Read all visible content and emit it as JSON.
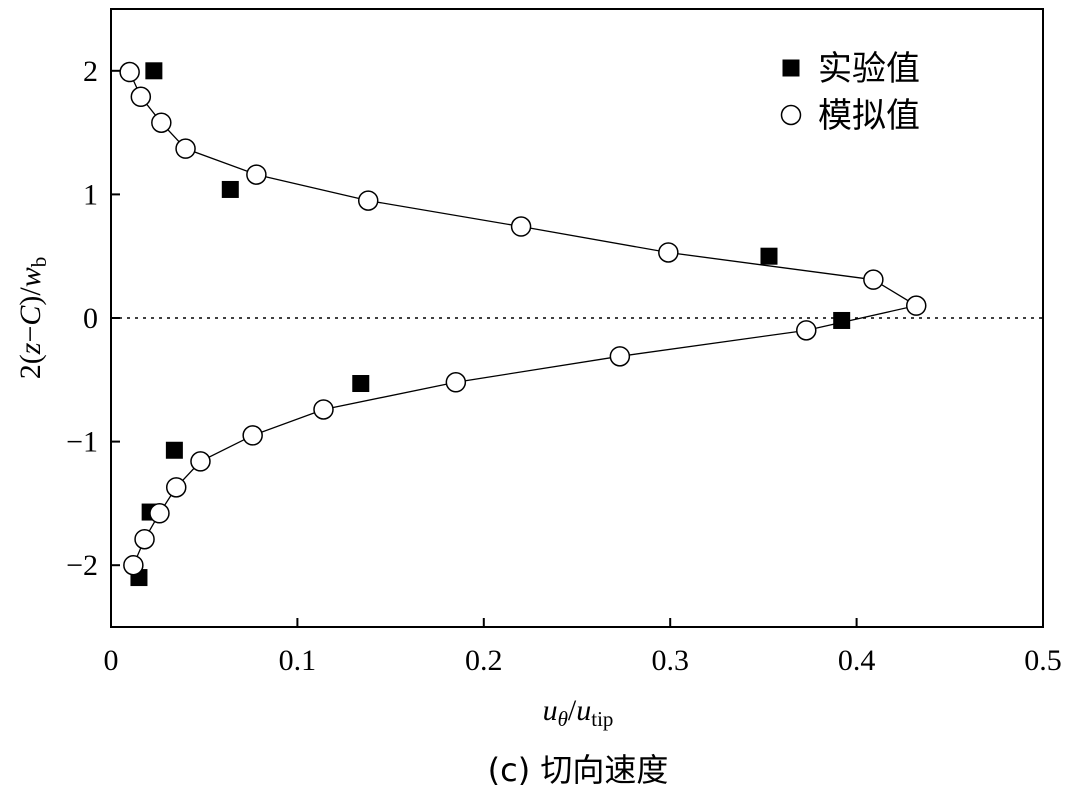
{
  "chart_data": {
    "type": "scatter",
    "title": "",
    "caption": "(c) 切向速度",
    "xlabel": {
      "main": "u",
      "main_sub": "θ",
      "sep": "/",
      "denom": "u",
      "denom_sub": "tip"
    },
    "ylabel": {
      "pre": "2(",
      "z": "z",
      "mid": "−",
      "c": "C",
      "post": ")/",
      "w": "w",
      "w_sub": "b"
    },
    "xlim": [
      0,
      0.5
    ],
    "ylim": [
      -2.5,
      2.5
    ],
    "xticks": [
      0,
      0.1,
      0.2,
      0.3,
      0.4,
      0.5
    ],
    "xtick_labels": [
      "0",
      "0.1",
      "0.2",
      "0.3",
      "0.4",
      "0.5"
    ],
    "yticks": [
      2,
      1,
      0,
      -1,
      -2
    ],
    "ytick_labels": [
      "2",
      "1",
      "0",
      "−1",
      "−2"
    ],
    "legend_position": "top-right",
    "reference_line": {
      "y": 0,
      "style": "dotted"
    },
    "series": [
      {
        "name": "实验值",
        "marker": "filled-square",
        "x": [
          0.023,
          0.064,
          0.353,
          0.392,
          0.134,
          0.034,
          0.021,
          0.015
        ],
        "y": [
          2.0,
          1.04,
          0.5,
          -0.02,
          -0.53,
          -1.07,
          -1.57,
          -2.1
        ]
      },
      {
        "name": "模拟值",
        "marker": "open-circle",
        "line": true,
        "x": [
          0.01,
          0.016,
          0.027,
          0.04,
          0.078,
          0.138,
          0.22,
          0.299,
          0.409,
          0.432,
          0.373,
          0.273,
          0.185,
          0.114,
          0.076,
          0.048,
          0.035,
          0.026,
          0.018,
          0.012
        ],
        "y": [
          1.99,
          1.79,
          1.58,
          1.37,
          1.16,
          0.95,
          0.74,
          0.53,
          0.31,
          0.1,
          -0.1,
          -0.31,
          -0.52,
          -0.74,
          -0.95,
          -1.16,
          -1.37,
          -1.58,
          -1.79,
          -2.0
        ]
      }
    ]
  }
}
